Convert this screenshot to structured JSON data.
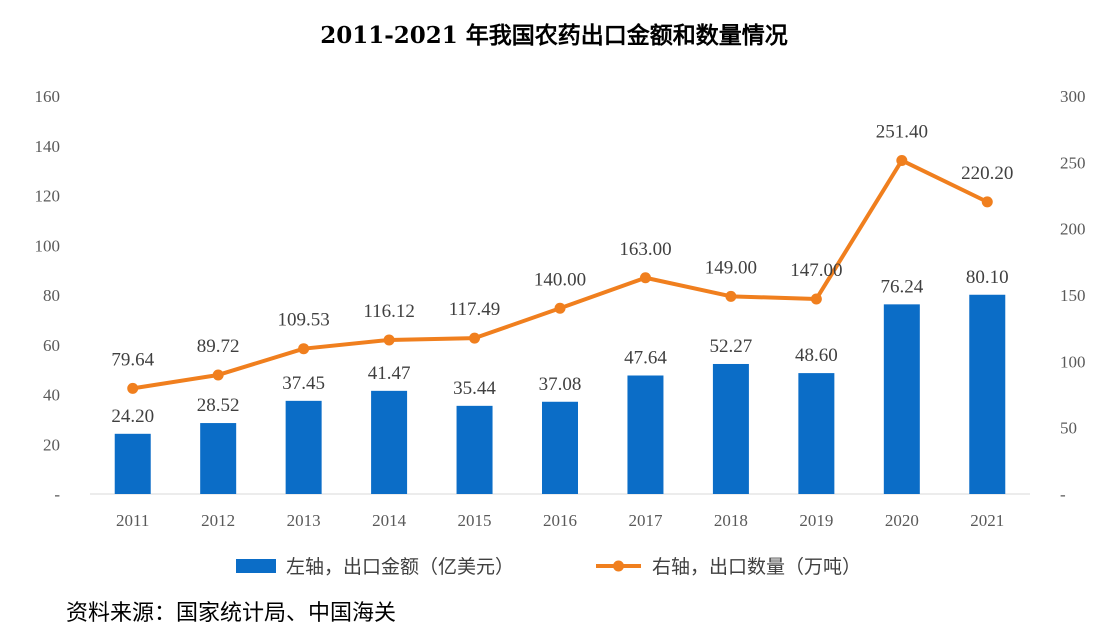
{
  "chart_data": {
    "type": "bar+line",
    "title": "2011-2021 年我国农药出口金额和数量情况",
    "categories": [
      "2011",
      "2012",
      "2013",
      "2014",
      "2015",
      "2016",
      "2017",
      "2018",
      "2019",
      "2020",
      "2021"
    ],
    "series": [
      {
        "name": "左轴，出口金额（亿美元）",
        "type": "bar",
        "axis": "left",
        "color": "#0b6dc7",
        "values": [
          24.2,
          28.52,
          37.45,
          41.47,
          35.44,
          37.08,
          47.64,
          52.27,
          48.6,
          76.24,
          80.1
        ],
        "labels": [
          "24.20",
          "28.52",
          "37.45",
          "41.47",
          "35.44",
          "37.08",
          "47.64",
          "52.27",
          "48.60",
          "76.24",
          "80.10"
        ]
      },
      {
        "name": "右轴，出口数量（万吨）",
        "type": "line",
        "axis": "right",
        "color": "#f07f1e",
        "values": [
          79.64,
          89.72,
          109.53,
          116.12,
          117.49,
          140.0,
          163.0,
          149.0,
          147.0,
          251.4,
          220.2
        ],
        "labels": [
          "79.64",
          "89.72",
          "109.53",
          "116.12",
          "117.49",
          "140.00",
          "163.00",
          "149.00",
          "147.00",
          "251.40",
          "220.20"
        ]
      }
    ],
    "y_left": {
      "range": [
        0,
        160
      ],
      "ticks": [
        0,
        20,
        40,
        60,
        80,
        100,
        120,
        140,
        160
      ],
      "tick_labels": [
        "-",
        "20",
        "40",
        "60",
        "80",
        "100",
        "120",
        "140",
        "160"
      ]
    },
    "y_right": {
      "range": [
        0,
        300
      ],
      "ticks": [
        0,
        50,
        100,
        150,
        200,
        250,
        300
      ],
      "tick_labels": [
        "-",
        "50",
        "100",
        "150",
        "200",
        "250",
        "300"
      ]
    },
    "grid": false,
    "legend_position": "bottom"
  },
  "source": "资料来源：国家统计局、中国海关"
}
